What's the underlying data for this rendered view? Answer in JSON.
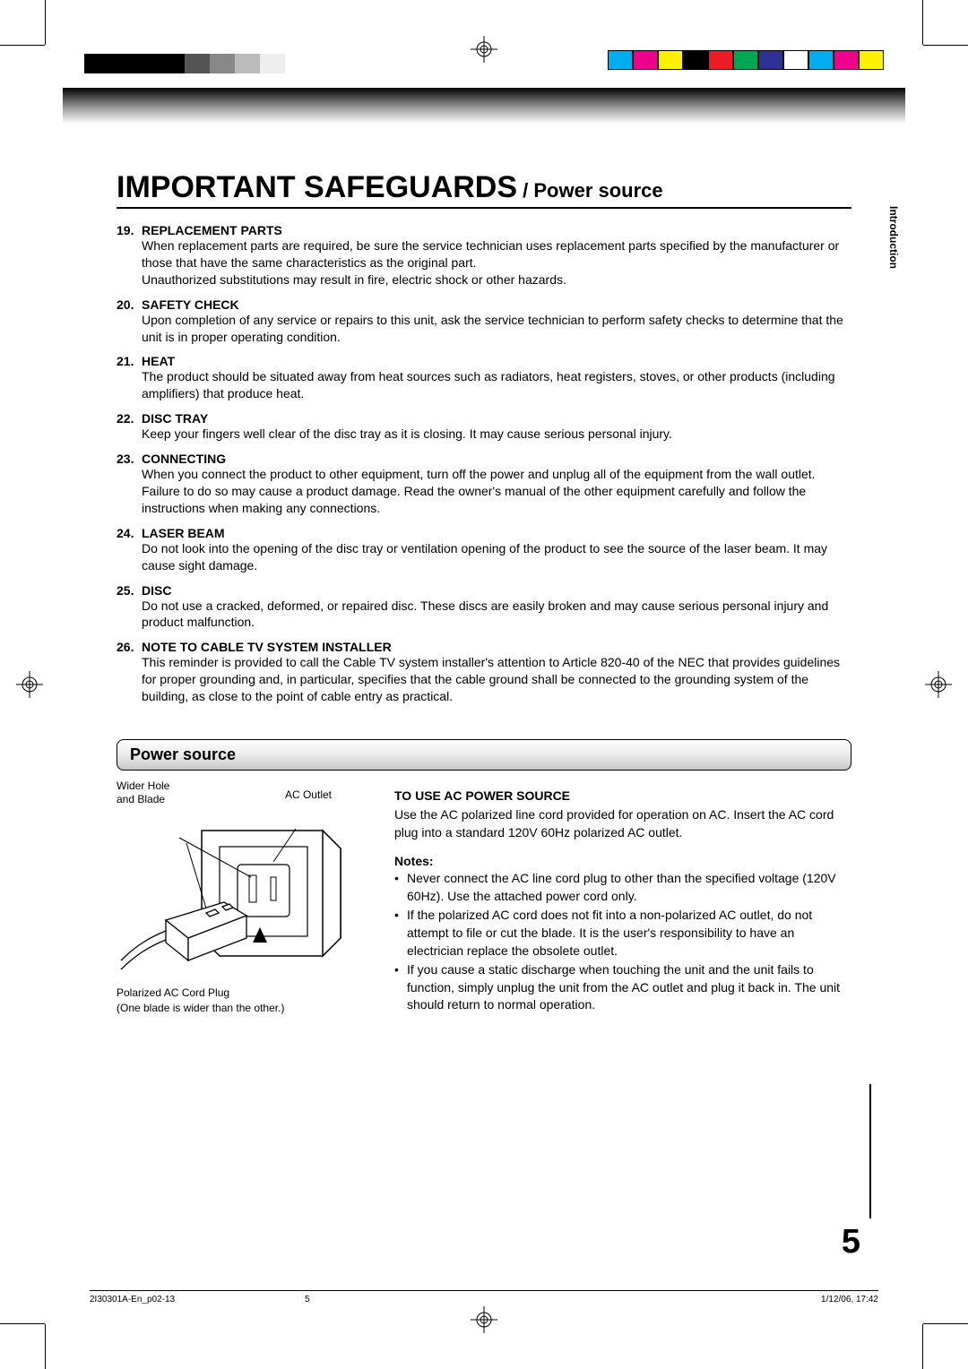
{
  "page": {
    "title_main": "IMPORTANT SAFEGUARDS",
    "title_sub": " / Power source",
    "side_tab": "Introduction",
    "page_number": "5"
  },
  "safeguards": [
    {
      "num": "19.",
      "title": "REPLACEMENT PARTS",
      "body": "When replacement parts are required, be sure the service technician uses replacement parts specified by the manufacturer or those that have the same characteristics as the original part.\nUnauthorized substitutions may result in fire, electric shock or other hazards."
    },
    {
      "num": "20.",
      "title": "SAFETY CHECK",
      "body": "Upon completion of any service or repairs to this unit, ask the service technician to perform safety checks to determine that the unit is in proper operating condition."
    },
    {
      "num": "21.",
      "title": "HEAT",
      "body": "The product should be situated away from heat sources such as radiators, heat registers, stoves, or other products (including amplifiers) that produce heat."
    },
    {
      "num": "22.",
      "title": "DISC TRAY",
      "body": "Keep your fingers well clear of the disc tray as it is closing. It may cause serious personal injury."
    },
    {
      "num": "23.",
      "title": "CONNECTING",
      "body": "When you connect the product to other equipment, turn off the power and unplug all of the equipment from the wall outlet. Failure to do so may cause a product damage. Read the owner's manual of the other equipment carefully and follow the instructions when making any connections."
    },
    {
      "num": "24.",
      "title": "LASER BEAM",
      "body": "Do not look into the opening of the disc tray or ventilation opening of the product to see the source of the laser beam. It may cause sight damage."
    },
    {
      "num": "25.",
      "title": "DISC",
      "body": "Do not use a cracked, deformed, or repaired disc. These discs are easily broken and may cause serious personal injury and product malfunction."
    },
    {
      "num": "26.",
      "title": "NOTE TO CABLE TV SYSTEM INSTALLER",
      "body": "This reminder is provided to call the Cable TV system installer's attention to Article 820-40 of the NEC that provides guidelines for proper grounding and, in particular, specifies that the cable ground shall be connected to the grounding system of the building, as close to the point of cable entry as practical."
    }
  ],
  "power": {
    "section_title": "Power source",
    "diagram": {
      "label_ac_outlet": "AC Outlet",
      "label_wider": "Wider Hole\nand Blade",
      "caption": "Polarized AC Cord Plug\n(One blade is wider than the other.)"
    },
    "heading": "TO USE AC POWER SOURCE",
    "intro": "Use the AC polarized line cord provided for operation on AC. Insert the AC cord plug into a standard 120V 60Hz polarized AC outlet.",
    "notes_label": "Notes:",
    "notes": [
      "Never connect the AC line cord plug to other than the specified voltage (120V 60Hz). Use the attached power cord only.",
      "If the polarized AC cord does not fit into a non-polarized AC outlet, do not attempt to file or cut the blade. It is the user's responsibility to have an electrician replace the obsolete outlet.",
      "If you cause a static discharge when touching the unit and the unit fails to function, simply unplug the unit from the AC outlet and plug it back in. The unit should return to normal operation."
    ]
  },
  "footer": {
    "left": "2I30301A-En_p02-13",
    "mid": "5",
    "right": "1/12/06, 17:42"
  },
  "print_marks": {
    "grayscale_strip": [
      "#000000",
      "#000000",
      "#000000",
      "#000000",
      "#555555",
      "#888888",
      "#bbbbbb",
      "#eeeeee"
    ],
    "color_strip": [
      "#00aeef",
      "#ec008c",
      "#fff200",
      "#000000",
      "#ed1c24",
      "#00a651",
      "#2e3192",
      "#ffffff",
      "#00aeef",
      "#ec008c",
      "#fff200"
    ]
  },
  "styles": {
    "title_fontsize": 34,
    "body_fontsize": 14,
    "caption_fontsize": 12,
    "page_number_fontsize": 38,
    "text_color": "#000000",
    "background_color": "#ffffff",
    "gradient_from": "#000000",
    "gradient_to": "#ffffff"
  }
}
